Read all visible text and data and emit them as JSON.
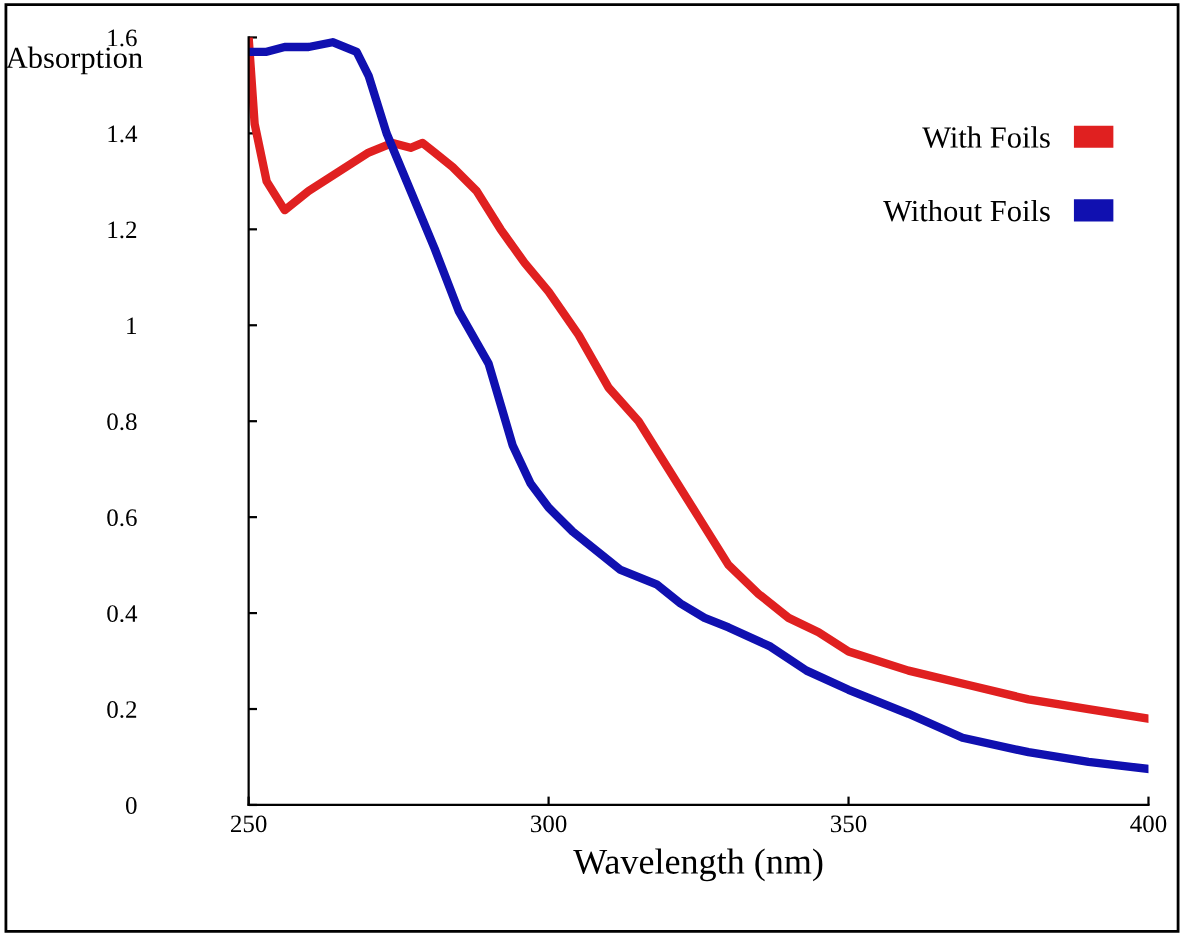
{
  "chart_data": {
    "type": "line",
    "xlabel": "Wavelength (nm)",
    "ylabel": "Absorption",
    "xlim": [
      250,
      400
    ],
    "xticks": [
      250,
      300,
      350,
      400
    ],
    "ylim": [
      0,
      1.6
    ],
    "yticks": [
      0,
      0.2,
      0.4,
      0.6,
      0.8,
      1,
      1.2,
      1.4,
      1.6
    ],
    "grid": false,
    "legend": "top right",
    "marker": "none",
    "line_style": "solid",
    "series": [
      {
        "name": "With Foils",
        "color": "#e02020",
        "x": [
          250,
          251,
          253,
          256,
          260,
          265,
          270,
          274,
          277,
          279,
          281,
          284,
          288,
          292,
          296,
          300,
          305,
          310,
          315,
          320,
          325,
          330,
          335,
          340,
          345,
          350,
          360,
          370,
          380,
          390,
          400
        ],
        "values": [
          1.6,
          1.42,
          1.3,
          1.24,
          1.28,
          1.32,
          1.36,
          1.38,
          1.37,
          1.38,
          1.36,
          1.33,
          1.28,
          1.2,
          1.13,
          1.07,
          0.98,
          0.87,
          0.8,
          0.7,
          0.6,
          0.5,
          0.44,
          0.39,
          0.36,
          0.32,
          0.28,
          0.25,
          0.22,
          0.2,
          0.18
        ]
      },
      {
        "name": "Without Foils",
        "color": "#1010b0",
        "x": [
          250,
          253,
          256,
          260,
          264,
          268,
          270,
          273,
          277,
          281,
          285,
          290,
          294,
          297,
          300,
          304,
          308,
          312,
          318,
          322,
          326,
          330,
          337,
          343,
          350,
          360,
          369,
          380,
          390,
          400
        ],
        "values": [
          1.57,
          1.57,
          1.58,
          1.58,
          1.59,
          1.57,
          1.52,
          1.4,
          1.28,
          1.16,
          1.03,
          0.92,
          0.75,
          0.67,
          0.62,
          0.57,
          0.53,
          0.49,
          0.46,
          0.42,
          0.39,
          0.37,
          0.33,
          0.28,
          0.24,
          0.19,
          0.14,
          0.11,
          0.09,
          0.075
        ]
      }
    ]
  }
}
